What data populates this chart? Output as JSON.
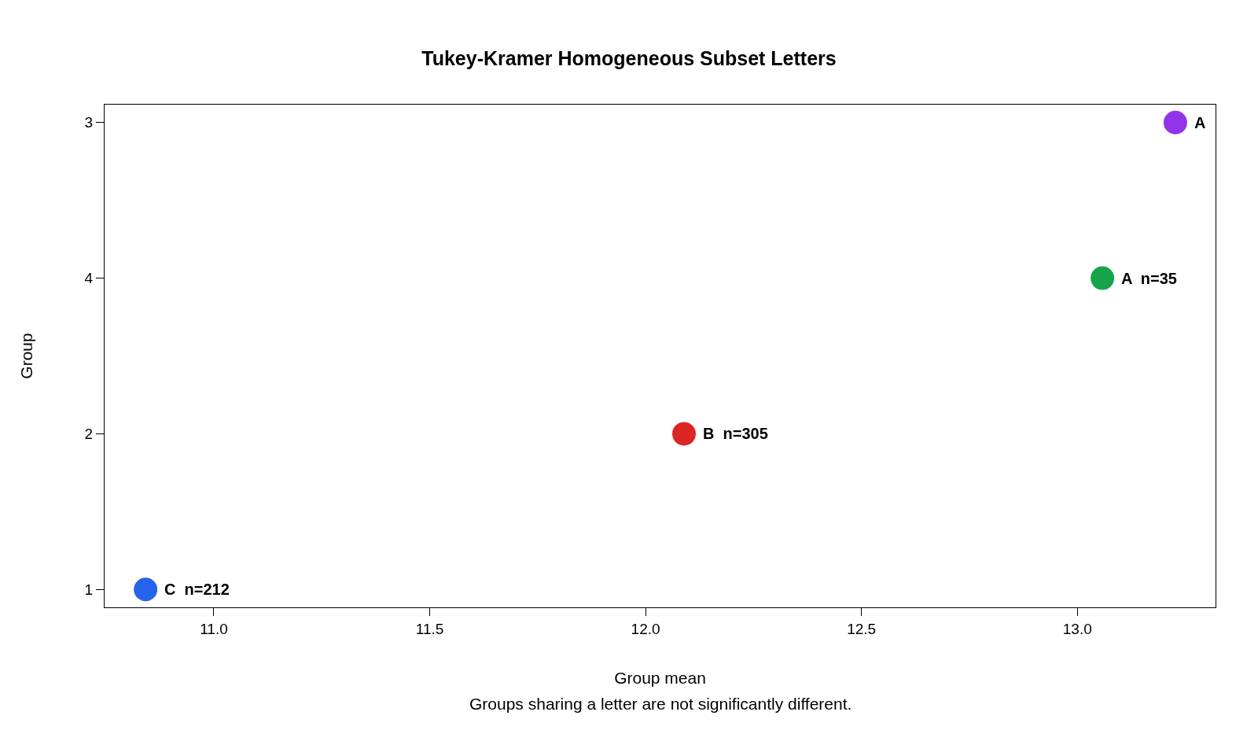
{
  "chart_data": {
    "type": "scatter",
    "title": "Tukey-Kramer Homogeneous Subset Letters",
    "xlabel": "Group mean",
    "ylabel": "Group",
    "annotations": [
      "Groups sharing a letter are not significantly different.",
      {
        "text": "A",
        "x": 13.227,
        "y": "3"
      },
      {
        "text": "A  n=35",
        "x": 13.058,
        "y": "4"
      },
      {
        "text": "B  n=305",
        "x": 12.089,
        "y": "2"
      },
      {
        "text": "C  n=212",
        "x": 10.842,
        "y": "1"
      }
    ],
    "orientation": "horizontal",
    "categories": [
      "3",
      "4",
      "2",
      "1"
    ],
    "values": [
      13.227,
      13.058,
      12.089,
      10.842
    ],
    "colors": [
      "#9333ea",
      "#16a34a",
      "#dc2626",
      "#2563eb"
    ],
    "xlim": [
      10.747,
      13.32
    ],
    "xticks": [
      {
        "value": 11,
        "label": "11.0"
      },
      {
        "value": 11.5,
        "label": "11.5"
      },
      {
        "value": 12,
        "label": "12.0"
      },
      {
        "value": 12.5,
        "label": "12.5"
      },
      {
        "value": 13,
        "label": "13.0"
      }
    ],
    "marker": "circle",
    "grid": false,
    "legend": false
  }
}
